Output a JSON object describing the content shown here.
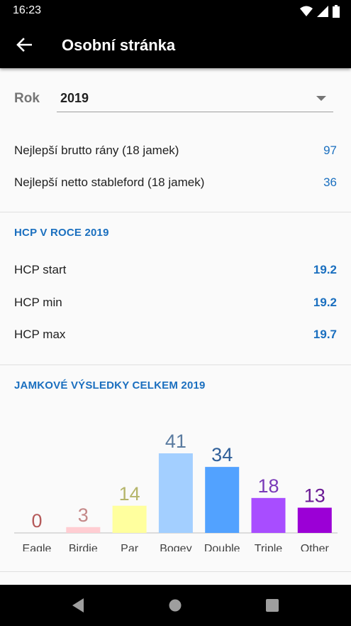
{
  "status": {
    "time": "16:23"
  },
  "app_bar": {
    "title": "Osobní stránka"
  },
  "year": {
    "label": "Rok",
    "value": "2019"
  },
  "best": [
    {
      "label": "Nejlepší brutto rány (18 jamek)",
      "value": "97"
    },
    {
      "label": "Nejlepší netto stableford (18 jamek)",
      "value": "36"
    }
  ],
  "hcp": {
    "title": "HCP V ROCE 2019",
    "rows": [
      {
        "label": "HCP start",
        "value": "19.2"
      },
      {
        "label": "HCP min",
        "value": "19.2"
      },
      {
        "label": "HCP max",
        "value": "19.7"
      }
    ]
  },
  "results": {
    "title": "JAMKOVÉ VÝSLEDKY CELKEM 2019"
  },
  "chart_data": {
    "type": "bar",
    "categories": [
      "Eagle",
      "Birdie",
      "Par",
      "Bogey",
      "Double",
      "Triple",
      "Other"
    ],
    "values": [
      0,
      3,
      14,
      41,
      34,
      18,
      13
    ],
    "colors": [
      "#d7a6a6",
      "#ffcdd2",
      "#ffff9e",
      "#a3cfff",
      "#52a2ff",
      "#a84dff",
      "#9b00d6"
    ],
    "label_colors": [
      "#b55a5a",
      "#c48888",
      "#b5b56a",
      "#5a7ba0",
      "#2f5f99",
      "#7a3ab8",
      "#6b1a95"
    ],
    "ylim": [
      0,
      41
    ]
  },
  "colors": {
    "accent": "#1a6fbf"
  }
}
